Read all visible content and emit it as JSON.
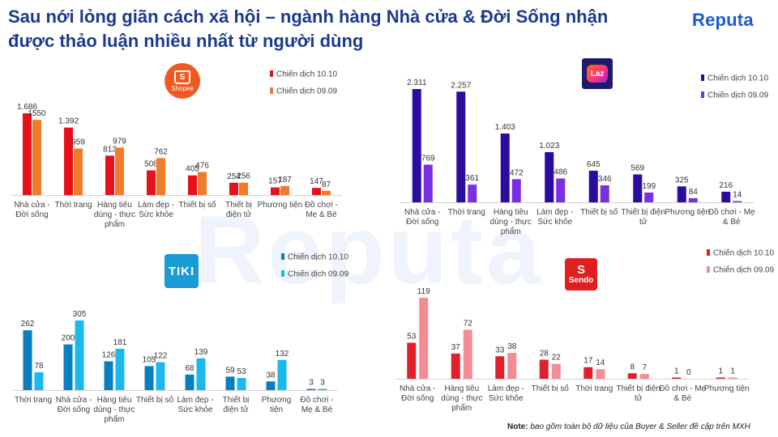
{
  "page": {
    "title": "Sau nới lỏng giãn cách xã hội – ngành hàng Nhà cửa & Đời Sống nhận được thảo luận nhiều nhất từ người dùng",
    "brand": "Reputa",
    "note_label": "Note:",
    "note_text": "bao gồm toàn bộ dữ liệu của Buyer & Seller đề cập trên MXH",
    "colors": {
      "title": "#1b3a8e",
      "brand": "#1c59d6"
    }
  },
  "logos": {
    "shopee": {
      "icon": "shopping-bag-icon",
      "bag_letter": "S",
      "text": "Shopee",
      "color": "#f05a22"
    },
    "lazada": {
      "icon": "heart-icon",
      "text": "Laz",
      "color": "#1e1a6e"
    },
    "tiki": {
      "text": "TIKI",
      "color": "#199bd6"
    },
    "sendo": {
      "icon": "s-icon",
      "s": "S",
      "text": "Sendo",
      "color": "#e02020"
    }
  },
  "chart_data": [
    {
      "id": "shopee",
      "type": "bar",
      "categories": [
        "Nhà cửa -\nĐời sống",
        "Thời trang",
        "Hàng tiêu\ndùng - thực\nphẩm",
        "Làm đẹp -\nSức khỏe",
        "Thiết bị số",
        "Thiết bị\nđiện tử",
        "Phương tiện",
        "Đồ chơi -\nMẹ & Bé"
      ],
      "series": [
        {
          "name": "Chiến dịch 10.10",
          "color": "#e8101a",
          "values": [
            1686,
            1392,
            813,
            508,
            405,
            254,
            157,
            147
          ],
          "labels": [
            "1.686",
            "1.392",
            "813",
            "508",
            "405",
            "254",
            "157",
            "147"
          ]
        },
        {
          "name": "Chiến dịch 09.09",
          "color": "#f07c2b",
          "values": [
            1550,
            959,
            979,
            762,
            476,
            256,
            187,
            87
          ],
          "labels": [
            "1550",
            "959",
            "979",
            "762",
            "476",
            "256",
            "187",
            "87"
          ]
        }
      ],
      "ylim": [
        0,
        1686
      ],
      "legend_position": "top-right"
    },
    {
      "id": "lazada",
      "type": "bar",
      "categories": [
        "Nhà cửa -\nĐời sống",
        "Thời trang",
        "Hàng tiêu\ndùng - thực\nphẩm",
        "Làm đẹp -\nSức khỏe",
        "Thiết bị số",
        "Thiết bị điện\ntử",
        "Phương tiện",
        "Đồ chơi - Mẹ\n& Bé"
      ],
      "series": [
        {
          "name": "Chiến dịch 10.10",
          "color": "#2b0c9e",
          "values": [
            2311,
            2257,
            1403,
            1023,
            645,
            569,
            325,
            216
          ],
          "labels": [
            "2.311",
            "2.257",
            "1.403",
            "1.023",
            "645",
            "569",
            "325",
            "216"
          ]
        },
        {
          "name": "Chiến dịch 09.09",
          "color": "#7a2fe0",
          "values": [
            769,
            361,
            472,
            486,
            346,
            199,
            84,
            14
          ],
          "labels": [
            "769",
            "361",
            "472",
            "486",
            "346",
            "199",
            "84",
            "14"
          ]
        }
      ],
      "ylim": [
        0,
        2311
      ],
      "legend_position": "top-right"
    },
    {
      "id": "tiki",
      "type": "bar",
      "categories": [
        "Thời trang",
        "Nhà cửa -\nĐời sống",
        "Hàng tiêu\ndùng - thực\nphẩm",
        "Thiết bị số",
        "Làm đẹp -\nSức khỏe",
        "Thiết bị\nđiện tử",
        "Phương\ntiện",
        "Đồ chơi -\nMẹ & Bé"
      ],
      "series": [
        {
          "name": "Chiến dịch 10.10",
          "color": "#0a7fbf",
          "values": [
            262,
            200,
            126,
            105,
            68,
            59,
            38,
            3
          ],
          "labels": [
            "262",
            "200",
            "126",
            "105",
            "68",
            "59",
            "38",
            "3"
          ]
        },
        {
          "name": "Chiến dịch 09.09",
          "color": "#1bb8ec",
          "values": [
            78,
            305,
            181,
            122,
            139,
            53,
            132,
            3
          ],
          "labels": [
            "78",
            "305",
            "181",
            "122",
            "139",
            "53",
            "132",
            "3"
          ]
        }
      ],
      "ylim": [
        0,
        305
      ],
      "legend_position": "top-right"
    },
    {
      "id": "sendo",
      "type": "bar",
      "categories": [
        "Nhà cửa -\nĐời sống",
        "Hàng tiêu\ndùng - thực\nphẩm",
        "Làm đẹp -\nSức khỏe",
        "Thiết bị số",
        "Thời trang",
        "Thiết bị điện\ntử",
        "Đồ chơi - Mẹ\n& Bé",
        "Phương tiện"
      ],
      "series": [
        {
          "name": "Chiến dịch 10.10",
          "color": "#e0202a",
          "values": [
            53,
            37,
            33,
            28,
            17,
            8,
            1,
            1
          ],
          "labels": [
            "53",
            "37",
            "33",
            "28",
            "17",
            "8",
            "1",
            "1"
          ]
        },
        {
          "name": "Chiến dịch 09.09",
          "color": "#f48c95",
          "values": [
            119,
            72,
            38,
            22,
            14,
            7,
            0,
            1
          ],
          "labels": [
            "119",
            "72",
            "38",
            "22",
            "14",
            "7",
            "0",
            "1"
          ]
        }
      ],
      "ylim": [
        0,
        119
      ],
      "legend_position": "top-right"
    }
  ]
}
